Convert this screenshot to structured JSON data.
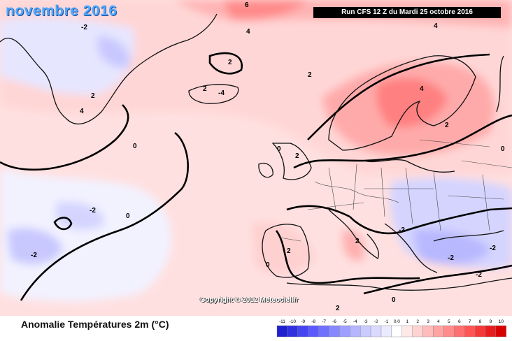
{
  "map": {
    "title": "novembre 2016",
    "run_info": "Run CFS 12 Z du Mardi 25 octobre 2016",
    "copyright": "Copyright © 2012 Meteociel.fr",
    "variable_title": "Anomalie Températures 2m (°C)",
    "contour_labels": [
      {
        "id": "n-atlantic-0",
        "text": "0"
      },
      {
        "id": "atlantic-0",
        "text": "0"
      },
      {
        "id": "atlantic-m2",
        "text": "-2"
      },
      {
        "id": "atlantic-sw-m2",
        "text": "-2"
      },
      {
        "id": "greenland-m2",
        "text": "-2"
      },
      {
        "id": "greenland-2",
        "text": "2"
      },
      {
        "id": "greenland-4",
        "text": "4"
      },
      {
        "id": "iceland-2",
        "text": "2"
      },
      {
        "id": "iceland-4",
        "text": "-4"
      },
      {
        "id": "arctic-6",
        "text": "6"
      },
      {
        "id": "arctic-4",
        "text": "4"
      },
      {
        "id": "arctic-e-4",
        "text": "4"
      },
      {
        "id": "norway-sea-2",
        "text": "2"
      },
      {
        "id": "scandinavia-4",
        "text": "4"
      },
      {
        "id": "scandinavia-2",
        "text": "2"
      },
      {
        "id": "baltic-2",
        "text": "2"
      },
      {
        "id": "uk-2",
        "text": "2"
      },
      {
        "id": "uk-0",
        "text": "0"
      },
      {
        "id": "iberia-2",
        "text": "2"
      },
      {
        "id": "iberia-0",
        "text": "0"
      },
      {
        "id": "italy-2",
        "text": "2"
      },
      {
        "id": "balkans-m2",
        "text": "-2"
      },
      {
        "id": "greece-m2",
        "text": "-2"
      },
      {
        "id": "e-europe-m2",
        "text": "-2"
      },
      {
        "id": "turkey-m2",
        "text": "-2"
      },
      {
        "id": "med-0",
        "text": "0"
      },
      {
        "id": "africa-2",
        "text": "2"
      },
      {
        "id": "russia-0",
        "text": "0"
      }
    ]
  },
  "legend": {
    "ticks": [
      "-11",
      "-10",
      "-9",
      "-8",
      "-7",
      "-6",
      "-5",
      "-4",
      "-3",
      "-2",
      "-1",
      "0.0",
      "1",
      "2",
      "3",
      "4",
      "5",
      "6",
      "7",
      "8",
      "9",
      "10"
    ],
    "colors": [
      "#2020d0",
      "#3030e0",
      "#4545f0",
      "#5a5aff",
      "#7070ff",
      "#8787ff",
      "#9e9eff",
      "#b5b5ff",
      "#cacaff",
      "#dadaff",
      "#ebebff",
      "#ffffff",
      "#ffe8e8",
      "#ffd2d2",
      "#ffbbbb",
      "#ffa3a3",
      "#ff8b8b",
      "#ff7070",
      "#ff5555",
      "#f53838",
      "#e81e1e",
      "#d80000"
    ]
  }
}
